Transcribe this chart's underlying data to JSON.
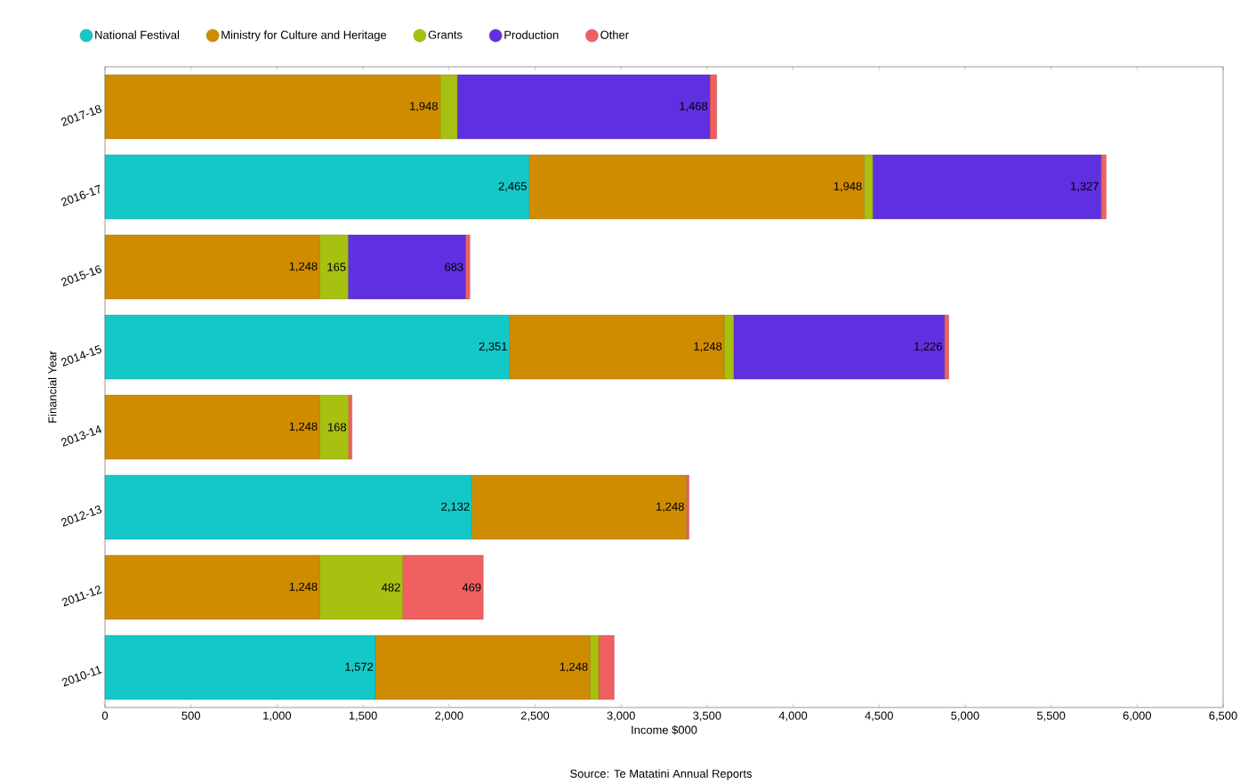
{
  "chart_data": {
    "type": "bar",
    "orientation": "horizontal",
    "stacked": true,
    "xlabel": "Income $000",
    "ylabel": "Financial Year",
    "annotations": [
      "Source: Te Matatini Annual Reports"
    ],
    "categories": [
      "2017-18",
      "2016-17",
      "2015-16",
      "2014-15",
      "2013-14",
      "2012-13",
      "2011-12",
      "2010-11"
    ],
    "series": [
      {
        "name": "National Festival",
        "color": "#14c8c8",
        "values": [
          0,
          2465,
          0,
          2351,
          0,
          2132,
          0,
          1572
        ],
        "value_labels": [
          null,
          "2,465",
          null,
          "2,351",
          null,
          "2,132",
          null,
          "1,572"
        ]
      },
      {
        "name": "Ministry for Culture and Heritage",
        "color": "#d08c00",
        "values": [
          1948,
          1948,
          1248,
          1248,
          1248,
          1248,
          1248,
          1248
        ],
        "value_labels": [
          "1,948",
          "1,948",
          "1,248",
          "1,248",
          "1,248",
          "1,248",
          "1,248",
          "1,248"
        ]
      },
      {
        "name": "Grants",
        "color": "#a8c010",
        "values": [
          100,
          50,
          165,
          55,
          168,
          0,
          482,
          50
        ],
        "value_labels": [
          null,
          null,
          "165",
          null,
          "168",
          null,
          "482",
          null
        ]
      },
      {
        "name": "Production",
        "color": "#6030e0",
        "values": [
          1468,
          1327,
          683,
          1226,
          0,
          0,
          0,
          0
        ],
        "value_labels": [
          "1,468",
          "1,327",
          "683",
          "1,226",
          null,
          null,
          null,
          null
        ]
      },
      {
        "name": "Other",
        "color": "#f06060",
        "values": [
          40,
          30,
          25,
          25,
          20,
          15,
          469,
          90
        ],
        "value_labels": [
          null,
          null,
          null,
          null,
          null,
          null,
          "469",
          null
        ]
      }
    ],
    "xlim": [
      0,
      6500
    ],
    "xticks": [
      0,
      500,
      {
        "value": 1000,
        "label": "1,000"
      },
      {
        "value": 1500,
        "label": "1,500"
      },
      {
        "value": 2000,
        "label": "2,000"
      },
      {
        "value": 2500,
        "label": "2,500"
      },
      {
        "value": 3000,
        "label": "3,000"
      },
      {
        "value": 3500,
        "label": "3,500"
      },
      {
        "value": 4000,
        "label": "4,000"
      },
      {
        "value": 4500,
        "label": "4,500"
      },
      {
        "value": 5000,
        "label": "5,000"
      },
      {
        "value": 5500,
        "label": "5,500"
      },
      {
        "value": 6000,
        "label": "6,000"
      },
      {
        "value": 6500,
        "label": "6,500"
      }
    ],
    "legend": "top left"
  }
}
